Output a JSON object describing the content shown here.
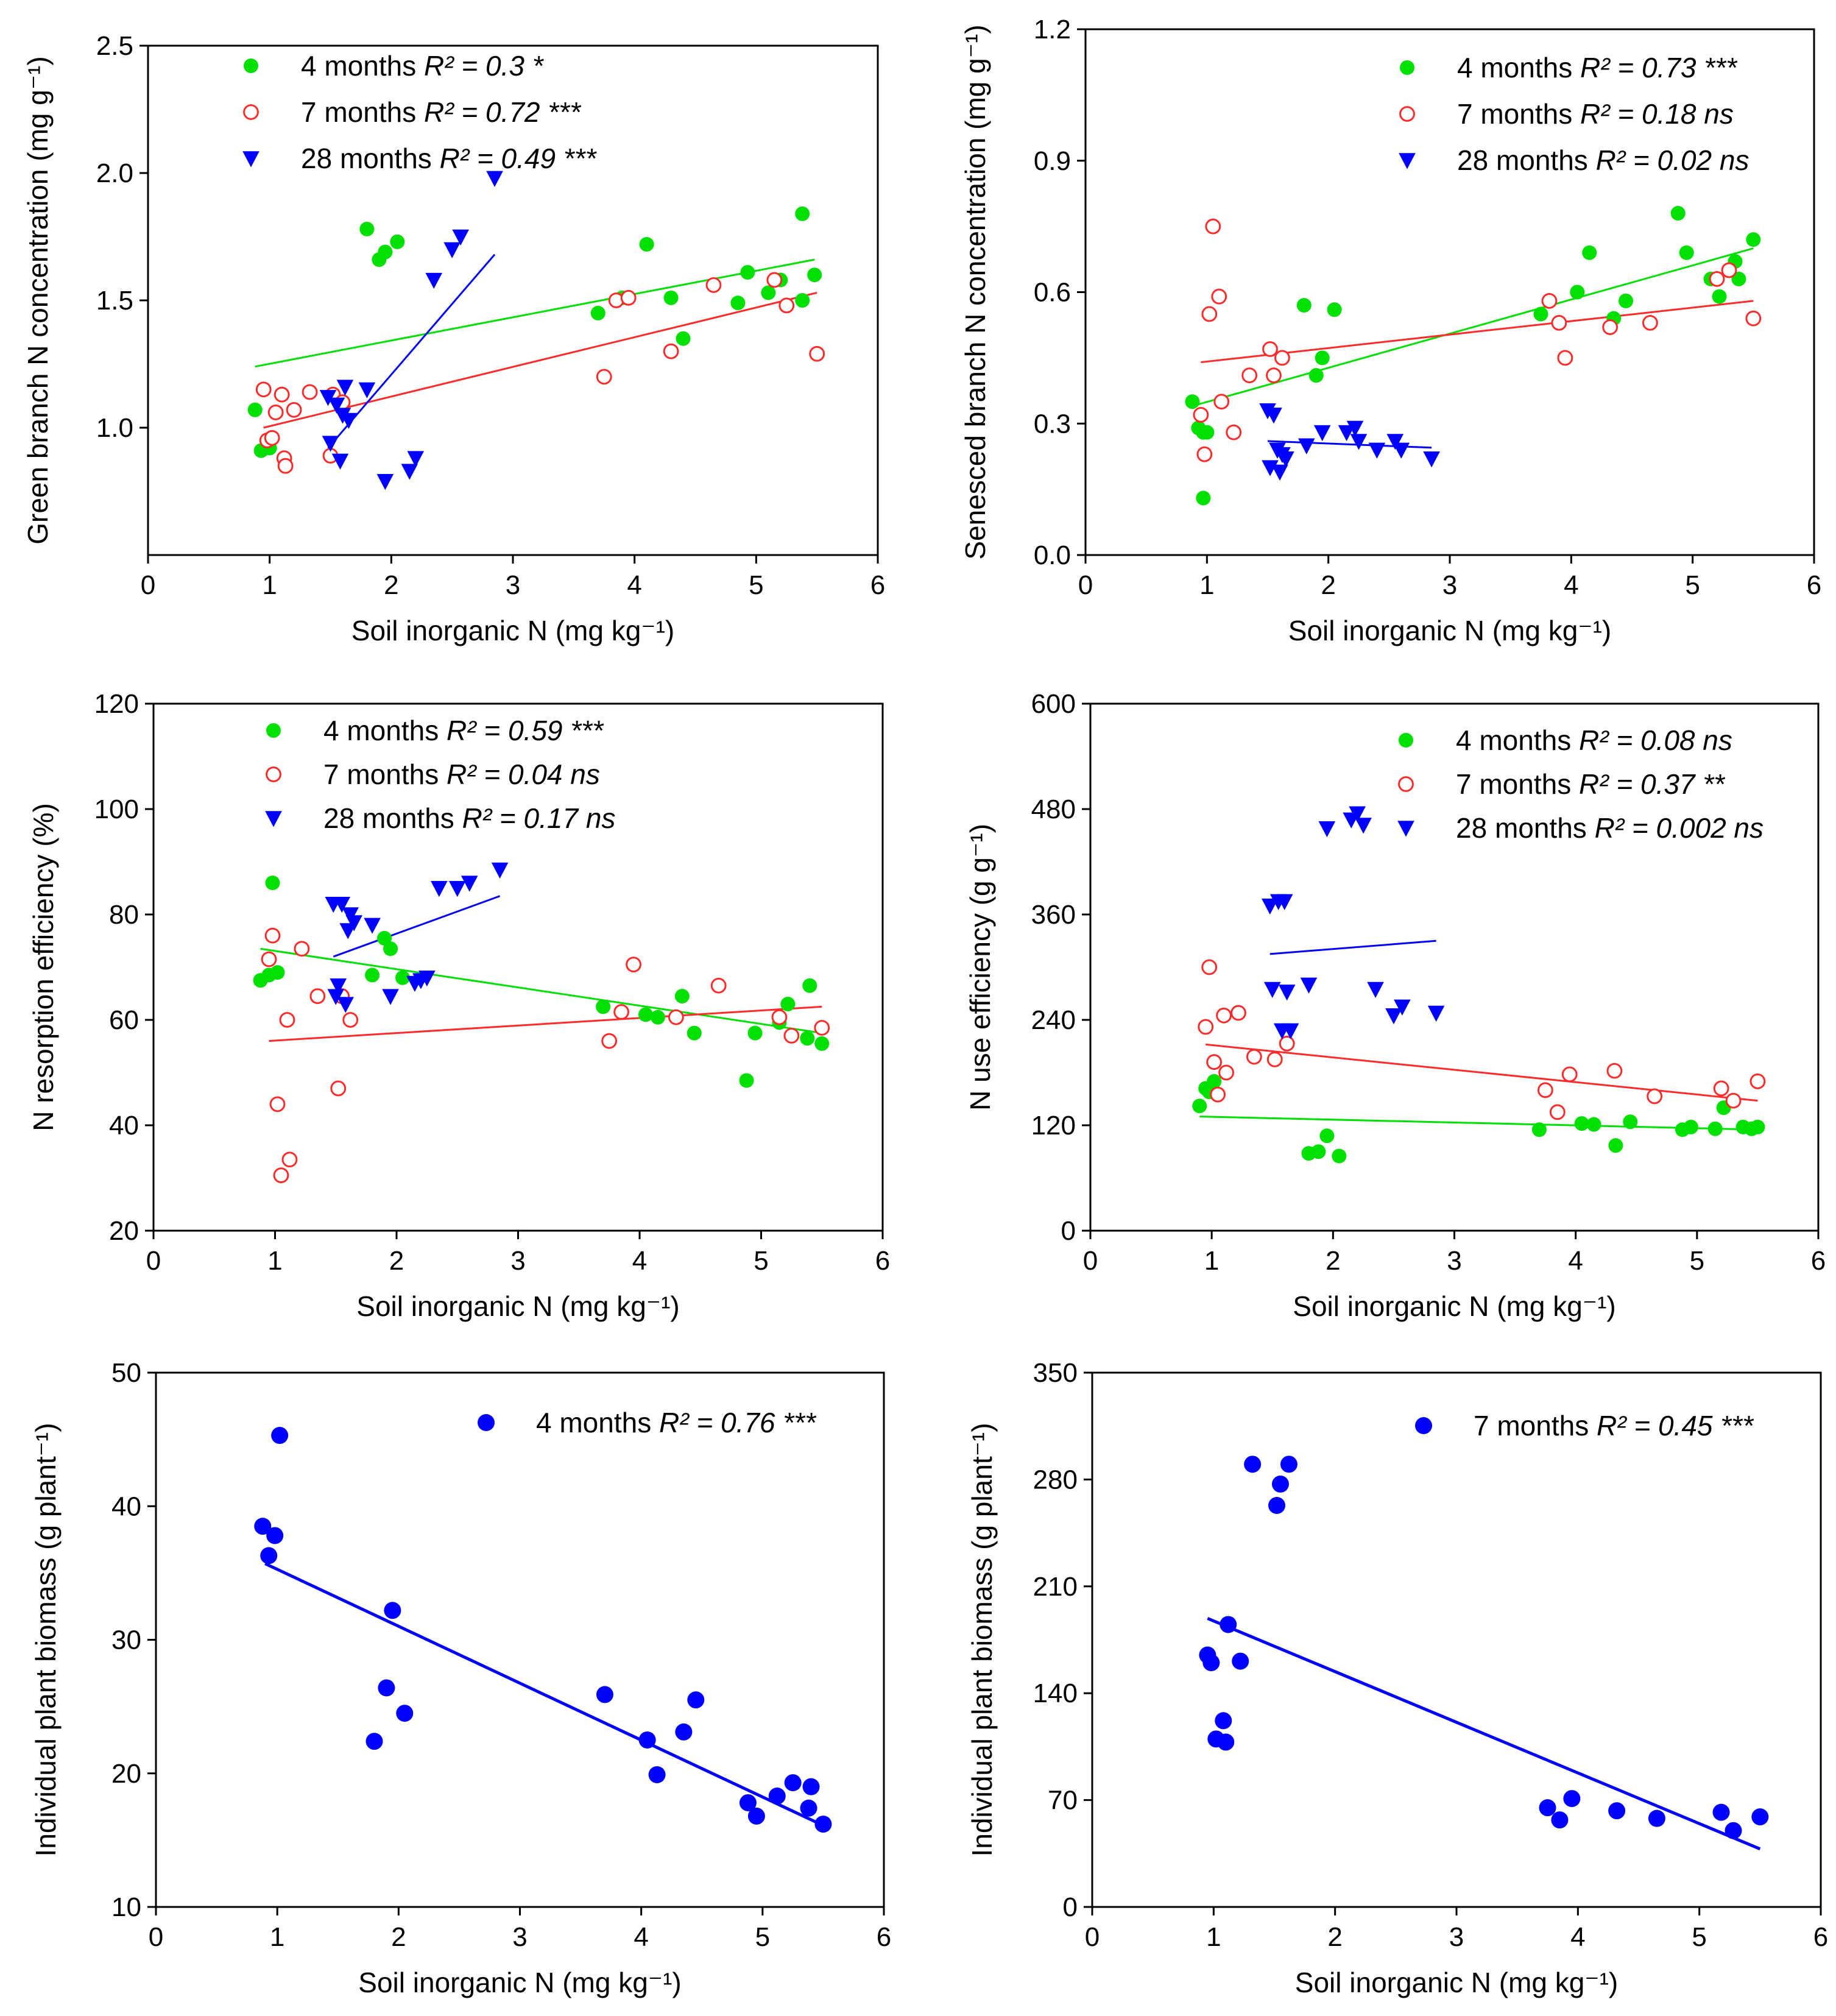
{
  "chart_data": [
    {
      "type": "scatter",
      "xlabel": "Soil inorganic N (mg  kg⁻¹)",
      "ylabel": "Green branch N concentration (mg g⁻¹)",
      "xlim": [
        0,
        6
      ],
      "ylim": [
        0.5,
        2.5
      ],
      "xticks": [
        0,
        1,
        2,
        3,
        4,
        5,
        6
      ],
      "xtick_labels": [
        "0",
        "1",
        "2",
        "3",
        "4",
        "5",
        "6"
      ],
      "yticks": [
        1.0,
        1.5,
        2.0,
        2.5
      ],
      "ytick_labels": [
        "1.0",
        "1.5",
        "2.0",
        "2.5"
      ],
      "legend_position": "top-left",
      "series": [
        {
          "name": "4 months",
          "r2_text": "R² = 0.3 *",
          "marker": "filled-circle",
          "color": "#00e000",
          "x": [
            0.88,
            0.93,
            1.0,
            1.8,
            1.9,
            1.95,
            2.05,
            3.7,
            3.9,
            4.1,
            4.3,
            4.4,
            4.85,
            4.93,
            5.1,
            5.2,
            5.38,
            5.38,
            5.48
          ],
          "y": [
            1.07,
            0.91,
            0.92,
            1.78,
            1.66,
            1.69,
            1.73,
            1.45,
            1.51,
            1.72,
            1.51,
            1.35,
            1.49,
            1.61,
            1.53,
            1.58,
            1.5,
            1.84,
            1.6
          ],
          "fit": {
            "x": [
              0.88,
              5.48
            ],
            "y": [
              1.24,
              1.66
            ]
          }
        },
        {
          "name": "7 months",
          "r2_text": "R² = 0.72 ***",
          "marker": "open-circle",
          "color": "#ff2a2a",
          "x": [
            0.95,
            0.98,
            1.02,
            1.05,
            1.1,
            1.12,
            1.13,
            1.2,
            1.33,
            1.5,
            1.52,
            1.6,
            3.75,
            3.85,
            3.95,
            4.3,
            4.65,
            5.15,
            5.25,
            5.5
          ],
          "y": [
            1.15,
            0.95,
            0.96,
            1.06,
            1.13,
            0.88,
            0.85,
            1.07,
            1.14,
            0.89,
            1.13,
            1.1,
            1.2,
            1.5,
            1.51,
            1.3,
            1.56,
            1.58,
            1.48,
            1.29
          ],
          "fit": {
            "x": [
              0.95,
              5.5
            ],
            "y": [
              1.0,
              1.53
            ]
          }
        },
        {
          "name": "28 months",
          "r2_text": "R² = 0.49 ***",
          "marker": "filled-triangle-down",
          "color": "#0000ff",
          "x": [
            1.48,
            1.5,
            1.55,
            1.58,
            1.6,
            1.62,
            1.65,
            1.8,
            1.95,
            2.15,
            2.2,
            2.35,
            2.5,
            2.57,
            2.85
          ],
          "y": [
            1.12,
            0.94,
            1.09,
            0.87,
            1.05,
            1.16,
            1.03,
            1.15,
            0.79,
            0.83,
            0.88,
            1.58,
            1.7,
            1.75,
            1.98
          ],
          "fit": {
            "x": [
              1.48,
              2.85
            ],
            "y": [
              0.92,
              1.68
            ]
          }
        }
      ]
    },
    {
      "type": "scatter",
      "xlabel": "Soil inorganic N (mg  kg⁻¹)",
      "ylabel": "Senesced branch N concentration (mg g⁻¹)",
      "xlim": [
        0,
        6
      ],
      "ylim": [
        0,
        1.2
      ],
      "xticks": [
        0,
        1,
        2,
        3,
        4,
        5,
        6
      ],
      "xtick_labels": [
        "0",
        "1",
        "2",
        "3",
        "4",
        "5",
        "6"
      ],
      "yticks": [
        0,
        0.3,
        0.6,
        0.9,
        1.2
      ],
      "ytick_labels": [
        "0.0",
        "0.3",
        "0.6",
        "0.9",
        "1.2"
      ],
      "legend_position": "top-right",
      "series": [
        {
          "name": "4 months",
          "r2_text": "R² = 0.73 ***",
          "marker": "filled-circle",
          "color": "#00e000",
          "x": [
            0.88,
            0.93,
            0.97,
            1.0,
            0.97,
            1.8,
            1.9,
            1.95,
            2.05,
            3.75,
            4.05,
            4.15,
            4.35,
            4.45,
            4.88,
            4.95,
            5.15,
            5.22,
            5.35,
            5.38,
            5.5
          ],
          "y": [
            0.35,
            0.29,
            0.28,
            0.28,
            0.13,
            0.57,
            0.41,
            0.45,
            0.56,
            0.55,
            0.6,
            0.69,
            0.54,
            0.58,
            0.78,
            0.69,
            0.63,
            0.59,
            0.67,
            0.63,
            0.72
          ],
          "fit": {
            "x": [
              0.88,
              5.5
            ],
            "y": [
              0.34,
              0.7
            ]
          }
        },
        {
          "name": "7 months",
          "r2_text": "R² = 0.18 ns",
          "marker": "open-circle",
          "color": "#ff2a2a",
          "x": [
            0.95,
            0.98,
            1.02,
            1.05,
            1.1,
            1.12,
            1.22,
            1.35,
            1.52,
            1.55,
            1.62,
            3.82,
            3.9,
            3.95,
            4.32,
            4.65,
            5.2,
            5.3,
            5.5
          ],
          "y": [
            0.32,
            0.23,
            0.55,
            0.75,
            0.59,
            0.35,
            0.28,
            0.41,
            0.47,
            0.41,
            0.45,
            0.58,
            0.53,
            0.45,
            0.52,
            0.53,
            0.63,
            0.65,
            0.54
          ],
          "fit": {
            "x": [
              0.95,
              5.5
            ],
            "y": [
              0.44,
              0.58
            ]
          }
        },
        {
          "name": "28 months",
          "r2_text": "R² = 0.02 ns",
          "marker": "filled-triangle-down",
          "color": "#0000ff",
          "x": [
            1.5,
            1.52,
            1.55,
            1.58,
            1.6,
            1.62,
            1.65,
            1.82,
            1.95,
            2.15,
            2.22,
            2.25,
            2.4,
            2.55,
            2.6,
            2.85
          ],
          "y": [
            0.33,
            0.2,
            0.32,
            0.24,
            0.19,
            0.23,
            0.22,
            0.25,
            0.28,
            0.28,
            0.29,
            0.26,
            0.24,
            0.26,
            0.24,
            0.22
          ],
          "fit": {
            "x": [
              1.5,
              2.85
            ],
            "y": [
              0.26,
              0.245
            ]
          }
        }
      ]
    },
    {
      "type": "scatter",
      "xlabel": "Soil inorganic N (mg  kg⁻¹)",
      "ylabel": "N resorption efficiency (%)",
      "xlim": [
        0,
        6
      ],
      "ylim": [
        20,
        120
      ],
      "xticks": [
        0,
        1,
        2,
        3,
        4,
        5,
        6
      ],
      "xtick_labels": [
        "0",
        "1",
        "2",
        "3",
        "4",
        "5",
        "6"
      ],
      "yticks": [
        20,
        40,
        60,
        80,
        100,
        120
      ],
      "ytick_labels": [
        "20",
        "40",
        "60",
        "80",
        "100",
        "120"
      ],
      "legend_position": "top",
      "series": [
        {
          "name": "4 months",
          "r2_text": "R² = 0.59 ***",
          "marker": "filled-circle",
          "color": "#00e000",
          "x": [
            0.88,
            0.95,
            0.98,
            1.02,
            1.8,
            1.9,
            1.95,
            2.05,
            3.7,
            4.05,
            4.15,
            4.35,
            4.45,
            4.88,
            4.95,
            5.15,
            5.22,
            5.38,
            5.4,
            5.5
          ],
          "y": [
            67.5,
            68.5,
            86,
            69,
            68.5,
            75.5,
            73.5,
            68,
            62.5,
            61,
            60.5,
            64.5,
            57.5,
            48.5,
            57.5,
            59.5,
            63,
            56.5,
            66.5,
            55.5
          ],
          "fit": {
            "x": [
              0.88,
              5.5
            ],
            "y": [
              73.5,
              57.5
            ]
          }
        },
        {
          "name": "7 months",
          "r2_text": "R² = 0.04 ns",
          "marker": "open-circle",
          "color": "#ff2a2a",
          "x": [
            0.95,
            0.98,
            1.02,
            1.05,
            1.1,
            1.12,
            1.22,
            1.35,
            1.52,
            1.55,
            1.62,
            3.75,
            3.85,
            3.95,
            4.3,
            4.65,
            5.15,
            5.25,
            5.5
          ],
          "y": [
            71.5,
            76,
            44,
            30.5,
            60,
            33.5,
            73.5,
            64.5,
            47,
            64.5,
            60,
            56,
            61.5,
            70.5,
            60.5,
            66.5,
            60.5,
            57,
            58.5
          ],
          "fit": {
            "x": [
              0.95,
              5.5
            ],
            "y": [
              56,
              62.5
            ]
          }
        },
        {
          "name": "28 months",
          "r2_text": "R² = 0.17 ns",
          "marker": "filled-triangle-down",
          "color": "#0000ff",
          "x": [
            1.48,
            1.5,
            1.52,
            1.55,
            1.58,
            1.6,
            1.62,
            1.65,
            1.8,
            1.95,
            2.15,
            2.2,
            2.25,
            2.35,
            2.5,
            2.6,
            2.85
          ],
          "y": [
            82,
            64.5,
            66.5,
            82,
            63,
            77,
            80,
            78.5,
            78,
            64.5,
            67,
            67.5,
            68,
            85,
            85,
            86,
            88.5
          ],
          "fit": {
            "x": [
              1.48,
              2.85
            ],
            "y": [
              72,
              83.5
            ]
          }
        }
      ]
    },
    {
      "type": "scatter",
      "xlabel": "Soil inorganic N (mg  kg⁻¹)",
      "ylabel": "N use efficiency (g g⁻¹)",
      "xlim": [
        0,
        6
      ],
      "ylim": [
        0,
        600
      ],
      "xticks": [
        0,
        1,
        2,
        3,
        4,
        5,
        6
      ],
      "xtick_labels": [
        "0",
        "1",
        "2",
        "3",
        "4",
        "5",
        "6"
      ],
      "yticks": [
        0,
        120,
        240,
        360,
        480,
        600
      ],
      "ytick_labels": [
        "0",
        "120",
        "240",
        "360",
        "480",
        "600"
      ],
      "legend_position": "top-right",
      "series": [
        {
          "name": "4 months",
          "r2_text": "R² = 0.08 ns",
          "marker": "filled-circle",
          "color": "#00e000",
          "x": [
            0.9,
            0.95,
            0.98,
            1.02,
            1.8,
            1.88,
            1.95,
            2.05,
            3.7,
            4.05,
            4.15,
            4.33,
            4.45,
            4.88,
            4.95,
            5.15,
            5.22,
            5.38,
            5.45,
            5.5
          ],
          "y": [
            142,
            162,
            158,
            170,
            88,
            90,
            108,
            85,
            115,
            122,
            121,
            97,
            124,
            115,
            118,
            116,
            140,
            118,
            116,
            118
          ],
          "fit": {
            "x": [
              0.9,
              5.5
            ],
            "y": [
              130,
              115
            ]
          }
        },
        {
          "name": "7 months",
          "r2_text": "R² = 0.37 **",
          "marker": "open-circle",
          "color": "#ff2a2a",
          "x": [
            0.95,
            0.98,
            1.02,
            1.05,
            1.1,
            1.12,
            1.22,
            1.35,
            1.52,
            1.62,
            3.75,
            3.85,
            3.95,
            4.32,
            4.65,
            5.2,
            5.3,
            5.5
          ],
          "y": [
            232,
            300,
            192,
            155,
            245,
            180,
            248,
            198,
            195,
            213,
            160,
            135,
            178,
            182,
            153,
            162,
            148,
            170
          ],
          "fit": {
            "x": [
              0.95,
              5.5
            ],
            "y": [
              212,
              148
            ]
          }
        },
        {
          "name": "28 months",
          "r2_text": "R² = 0.002 ns",
          "marker": "filled-triangle-down",
          "color": "#0000ff",
          "x": [
            1.48,
            1.5,
            1.55,
            1.58,
            1.6,
            1.62,
            1.65,
            1.8,
            1.95,
            2.15,
            2.2,
            2.25,
            2.35,
            2.5,
            2.57,
            2.85
          ],
          "y": [
            370,
            275,
            375,
            228,
            375,
            272,
            228,
            280,
            458,
            468,
            475,
            462,
            275,
            245,
            255,
            248
          ],
          "fit": {
            "x": [
              1.48,
              2.85
            ],
            "y": [
              315,
              330
            ]
          }
        }
      ]
    },
    {
      "type": "scatter",
      "xlabel": "Soil inorganic N (mg  kg⁻¹)",
      "ylabel": "Individual plant biomass (g plant⁻¹)",
      "xlim": [
        0,
        6
      ],
      "ylim": [
        10,
        50
      ],
      "xticks": [
        0,
        1,
        2,
        3,
        4,
        5,
        6
      ],
      "xtick_labels": [
        "0",
        "1",
        "2",
        "3",
        "4",
        "5",
        "6"
      ],
      "yticks": [
        10,
        20,
        30,
        40,
        50
      ],
      "ytick_labels": [
        "10",
        "20",
        "30",
        "40",
        "50"
      ],
      "legend_position": "top-right",
      "series": [
        {
          "name": "4 months",
          "r2_text": "R² = 0.76 ***",
          "marker": "filled-circle",
          "color": "#0000ff",
          "x": [
            0.88,
            0.93,
            0.98,
            1.02,
            1.8,
            1.9,
            1.95,
            2.05,
            3.7,
            4.05,
            4.13,
            4.35,
            4.45,
            4.88,
            4.95,
            5.12,
            5.25,
            5.38,
            5.4,
            5.5
          ],
          "y": [
            38.5,
            36.3,
            37.8,
            45.3,
            22.4,
            26.4,
            32.2,
            24.5,
            25.9,
            22.5,
            19.9,
            23.1,
            25.5,
            17.8,
            16.8,
            18.3,
            19.3,
            17.4,
            19.0,
            16.2
          ],
          "fit": {
            "x": [
              0.9,
              5.5
            ],
            "y": [
              35.7,
              16.1
            ]
          }
        }
      ]
    },
    {
      "type": "scatter",
      "xlabel": "Soil inorganic N (mg  kg⁻¹)",
      "ylabel": "Individual plant biomass (g plant⁻¹)",
      "xlim": [
        0,
        6
      ],
      "ylim": [
        0,
        350
      ],
      "xticks": [
        0,
        1,
        2,
        3,
        4,
        5,
        6
      ],
      "xtick_labels": [
        "0",
        "1",
        "2",
        "3",
        "4",
        "5",
        "6"
      ],
      "yticks": [
        0,
        70,
        140,
        210,
        280,
        350
      ],
      "ytick_labels": [
        "0",
        "70",
        "140",
        "210",
        "280",
        "350"
      ],
      "legend_position": "top-right",
      "series": [
        {
          "name": "7 months",
          "r2_text": "R² = 0.45 ***",
          "marker": "filled-circle",
          "color": "#0000ff",
          "x": [
            0.95,
            0.98,
            1.02,
            1.08,
            1.1,
            1.12,
            1.22,
            1.32,
            1.52,
            1.55,
            1.62,
            3.75,
            3.85,
            3.95,
            4.32,
            4.65,
            5.18,
            5.28,
            5.5
          ],
          "y": [
            165,
            160,
            110,
            122,
            108,
            185,
            161,
            290,
            263,
            277,
            290,
            65,
            57,
            71,
            63,
            58,
            62,
            50,
            59
          ],
          "fit": {
            "x": [
              0.95,
              5.5
            ],
            "y": [
              189,
              38
            ]
          }
        }
      ]
    }
  ]
}
